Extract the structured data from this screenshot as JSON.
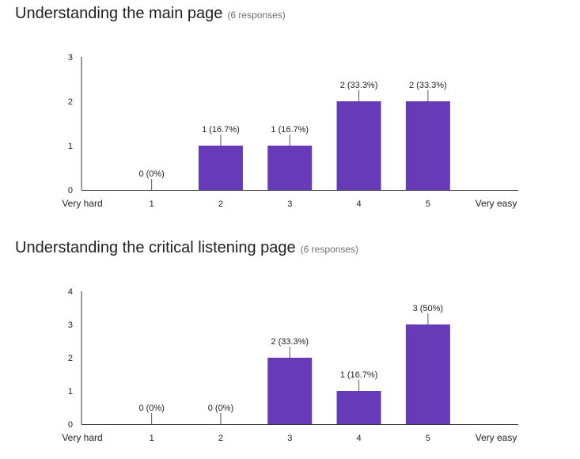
{
  "bar_color": "#673ab7",
  "chart_data": [
    {
      "type": "bar",
      "title": "Understanding the main page",
      "subtitle": "(6 responses)",
      "categories": [
        "1",
        "2",
        "3",
        "4",
        "5"
      ],
      "values": [
        0,
        1,
        1,
        2,
        2
      ],
      "data_labels": [
        "0 (0%)",
        "1 (16.7%)",
        "1 (16.7%)",
        "2 (33.3%)",
        "2 (33.3%)"
      ],
      "x_min_label": "Very hard",
      "x_max_label": "Very easy",
      "yticks": [
        "0",
        "1",
        "2",
        "3"
      ],
      "ylim": [
        0,
        3
      ],
      "grid": false
    },
    {
      "type": "bar",
      "title": "Understanding the critical listening page",
      "subtitle": "(6 responses)",
      "categories": [
        "1",
        "2",
        "3",
        "4",
        "5"
      ],
      "values": [
        0,
        0,
        2,
        1,
        3
      ],
      "data_labels": [
        "0 (0%)",
        "0 (0%)",
        "2 (33.3%)",
        "1 (16.7%)",
        "3 (50%)"
      ],
      "x_min_label": "Very hard",
      "x_max_label": "Very easy",
      "yticks": [
        "0",
        "1",
        "2",
        "3",
        "4"
      ],
      "ylim": [
        0,
        4
      ],
      "grid": false
    }
  ]
}
